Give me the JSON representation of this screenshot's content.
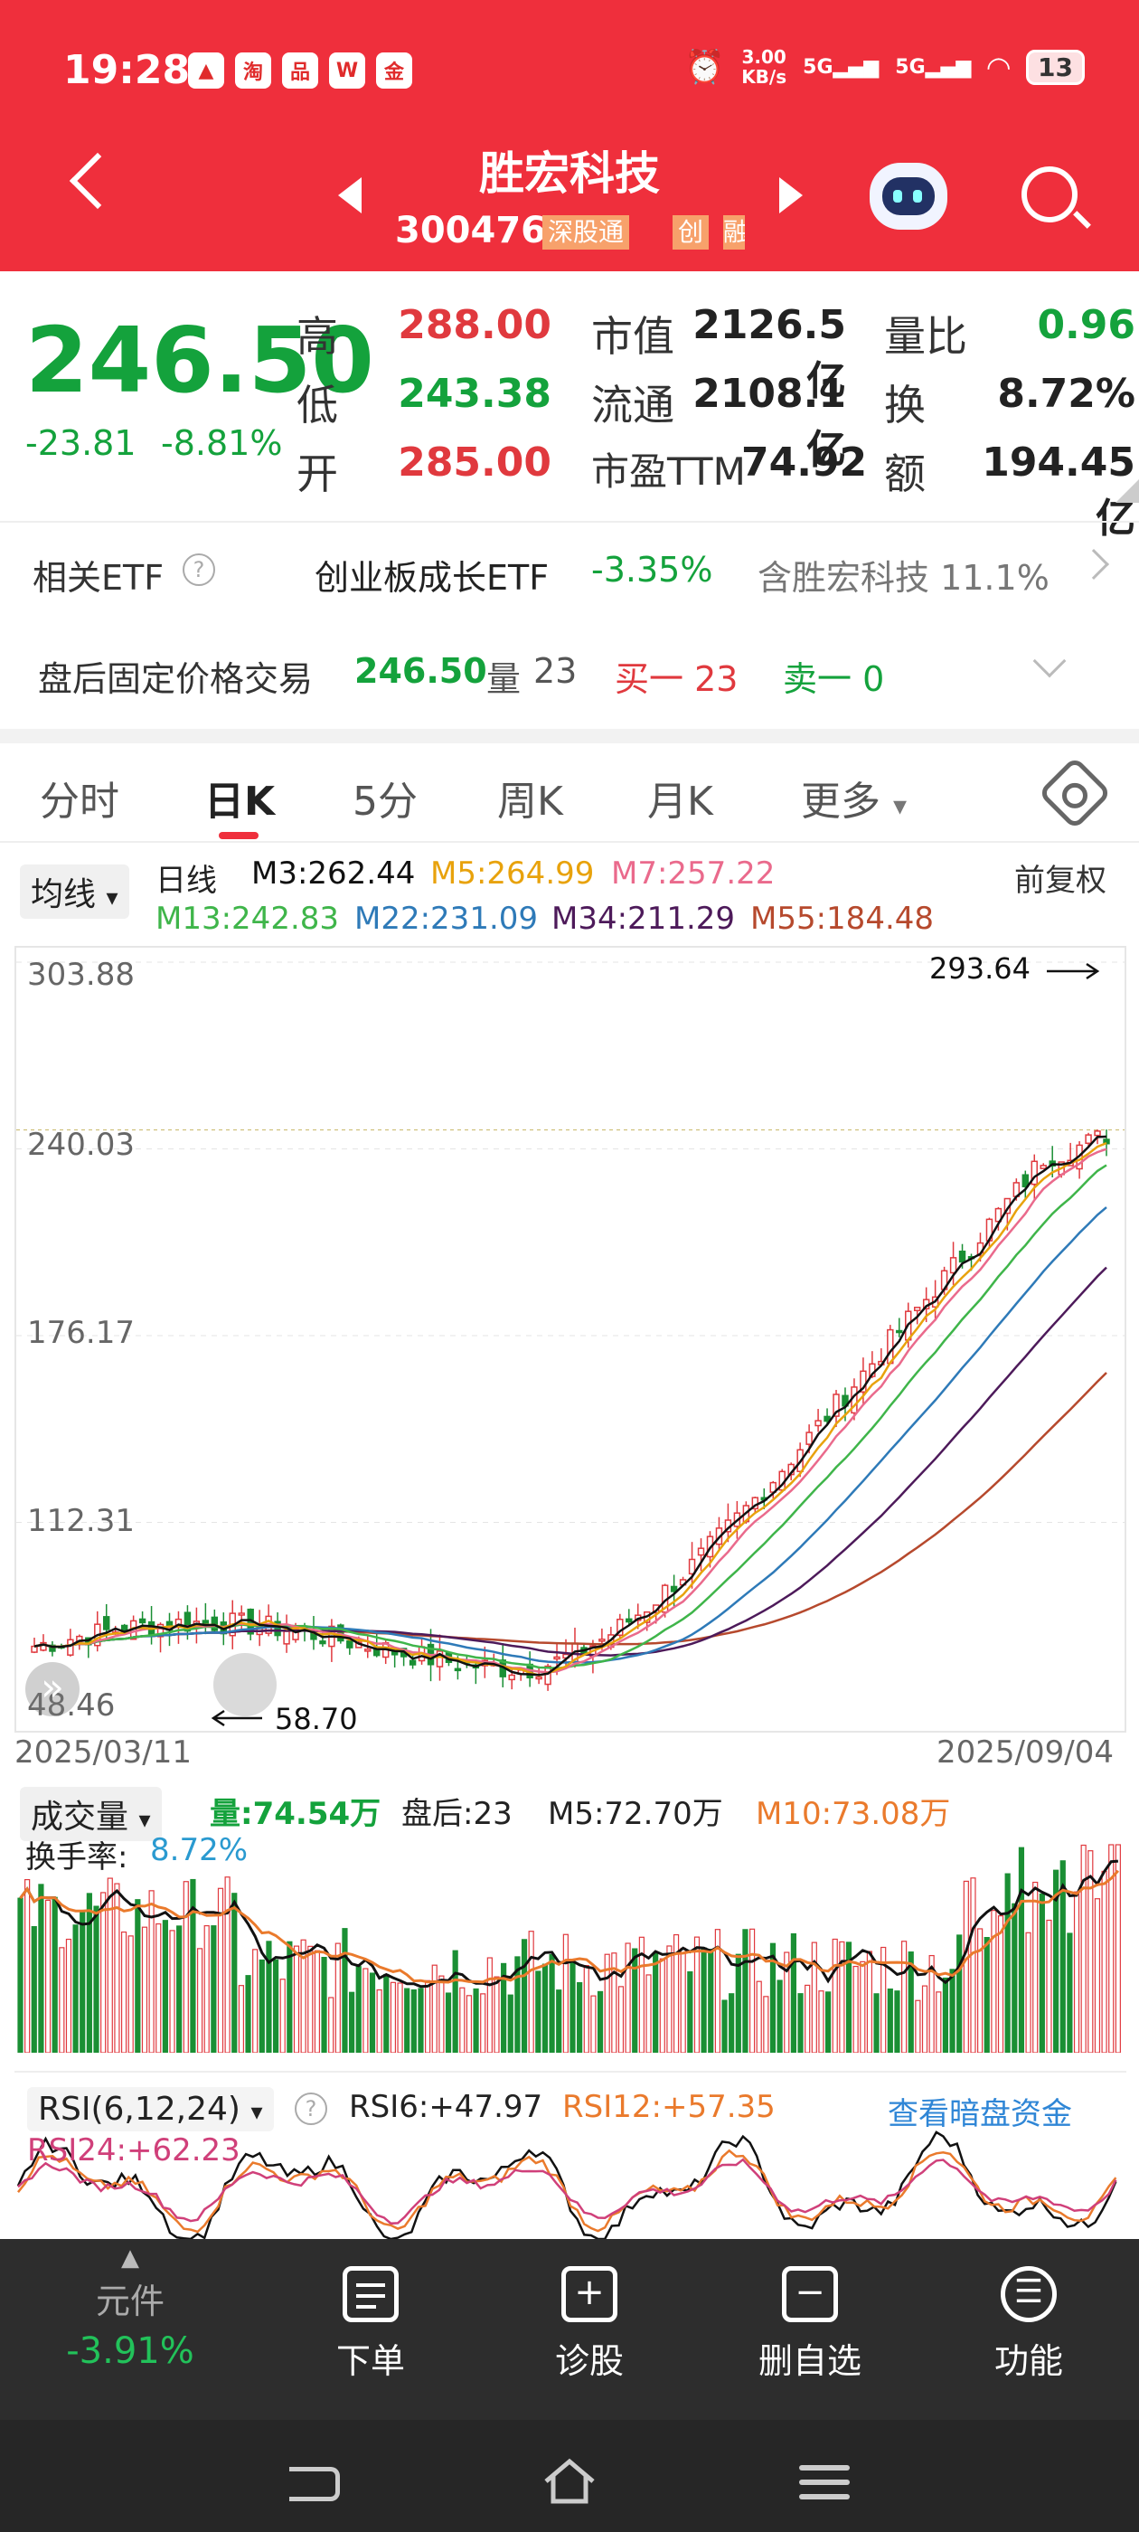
{
  "status": {
    "time": "19:28",
    "net_speed_top": "3.00",
    "net_speed_bottom": "KB/s",
    "sim1": "5G",
    "sim2": "5G",
    "battery": "13",
    "apps": [
      "▲",
      "淘",
      "品",
      "W",
      "金"
    ]
  },
  "header": {
    "title": "胜宏科技",
    "code": "300476",
    "tag1": "深股通",
    "tag2": "创",
    "tag3": "融"
  },
  "quote": {
    "price": "246.50",
    "change": "-23.81",
    "change_pct": "-8.81%",
    "high_label": "高",
    "high": "288.00",
    "low_label": "低",
    "low": "243.38",
    "open_label": "开",
    "open": "285.00",
    "mcap_label": "市值",
    "mcap": "2126.5亿",
    "float_label": "流通",
    "float": "2108.1亿",
    "pe_label": "市盈TTM",
    "pe": "74.92",
    "vr_label": "量比",
    "vr": "0.96",
    "turnover_label": "换",
    "turnover": "8.72%",
    "amount_label": "额",
    "amount": "194.45亿"
  },
  "etf": {
    "label": "相关ETF",
    "name": "创业板成长ETF",
    "pct": "-3.35%",
    "contain": "含胜宏科技 11.1%"
  },
  "after_hours": {
    "label": "盘后固定价格交易",
    "price": "246.50",
    "vol_label": "量",
    "vol": "23",
    "buy": "买一 23",
    "sell": "卖一 0"
  },
  "tabs": [
    "分时",
    "日K",
    "5分",
    "周K",
    "月K",
    "更多"
  ],
  "kline": {
    "ma_button": "均线",
    "period": "日线",
    "m3": "M3:262.44",
    "m5": "M5:264.99",
    "m7": "M7:257.22",
    "m13": "M13:242.83",
    "m22": "M22:231.09",
    "m34": "M34:211.29",
    "m55": "M55:184.48",
    "adjust": "前复权",
    "y_labels": [
      "303.88",
      "240.03",
      "176.17",
      "112.31",
      "48.46"
    ],
    "high_mark": "293.64",
    "low_mark": "58.70",
    "start_date": "2025/03/11",
    "end_date": "2025/09/04",
    "colors": {
      "m3": "#111111",
      "m5": "#e8a20c",
      "m7": "#ea6a8c",
      "m13": "#3fb54a",
      "m22": "#2e7ab8",
      "m34": "#4d1a5a",
      "m55": "#b6492d"
    }
  },
  "volume": {
    "button": "成交量",
    "vol": "量:74.54万",
    "after": "盘后:23",
    "m5": "M5:72.70万",
    "m10": "M10:73.08万",
    "turn_label": "换手率:",
    "turn": "8.72%"
  },
  "rsi": {
    "button": "RSI(6,12,24)",
    "r6": "RSI6:+47.97",
    "r12": "RSI12:+57.35",
    "r24": "RSI24:+62.23",
    "link": "查看暗盘资金"
  },
  "bottom": {
    "index_name": "元件",
    "index_pct": "-3.91%",
    "order": "下单",
    "diagnose": "诊股",
    "remove": "删自选",
    "func": "功能"
  }
}
